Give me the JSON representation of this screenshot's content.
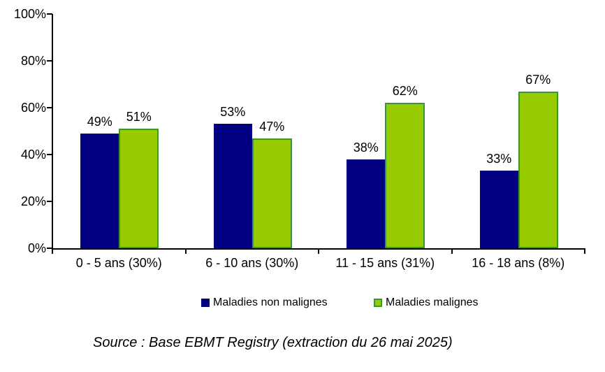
{
  "chart_data": {
    "type": "bar",
    "categories": [
      "0 - 5 ans (30%)",
      "6 - 10 ans (30%)",
      "11 - 15 ans (31%)",
      "16 - 18 ans (8%)"
    ],
    "series": [
      {
        "name": "Maladies non malignes",
        "values": [
          49,
          53,
          38,
          33
        ],
        "color": "#000080",
        "border_color": "#000080"
      },
      {
        "name": "Maladies malignes",
        "values": [
          51,
          47,
          62,
          67
        ],
        "color": "#99CC00",
        "border_color": "#339933"
      }
    ],
    "data_labels": true,
    "data_label_suffix": "%",
    "ylim": [
      0,
      100
    ],
    "ytick_labels": [
      "0%",
      "20%",
      "40%",
      "60%",
      "80%",
      "100%"
    ],
    "grid": false,
    "legend_position": "bottom",
    "axis_color": "#000000",
    "text_color": "#000000"
  },
  "source_note": "Source : Base EBMT Registry (extraction du 26 mai 2025)"
}
